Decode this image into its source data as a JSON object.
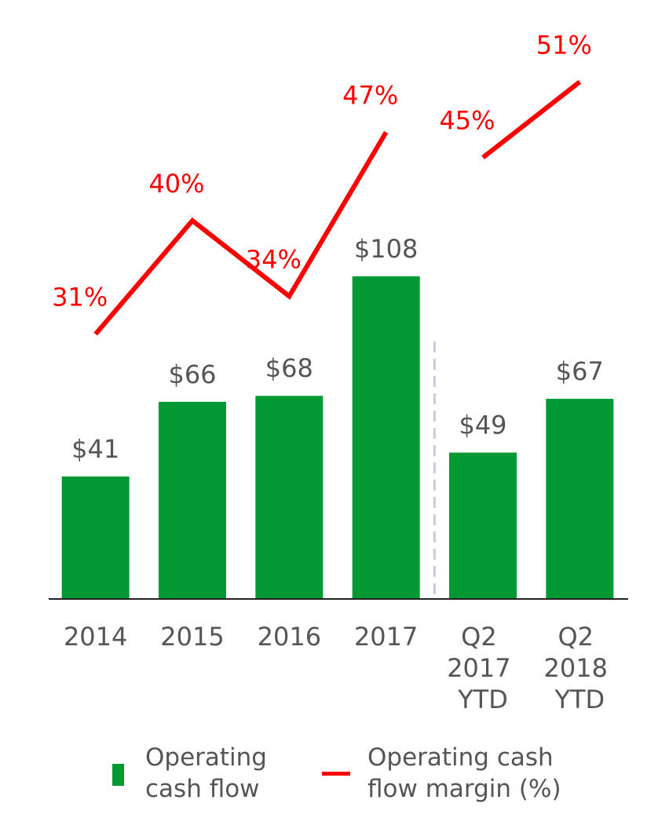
{
  "chart_data": {
    "type": "bar",
    "categories": [
      "2014",
      "2015",
      "2016",
      "2017",
      "Q2 2017 YTD",
      "Q2 2018 YTD"
    ],
    "series": [
      {
        "name": "Operating cash flow",
        "type": "bar",
        "color": "#009933",
        "values": [
          41,
          66,
          68,
          108,
          49,
          67
        ],
        "value_labels": [
          "$41",
          "$66",
          "$68",
          "$108",
          "$49",
          "$67"
        ]
      },
      {
        "name": "Operating cash flow margin (%)",
        "type": "line",
        "axis": "y2",
        "color": "#ff0000",
        "values": [
          31,
          40,
          34,
          47,
          45,
          51
        ],
        "value_labels": [
          "31%",
          "40%",
          "34%",
          "47%",
          "45%",
          "51%"
        ]
      }
    ],
    "divider_before": 4,
    "ylim": [
      0,
      190
    ],
    "y2lim": [
      10,
      55
    ]
  }
}
